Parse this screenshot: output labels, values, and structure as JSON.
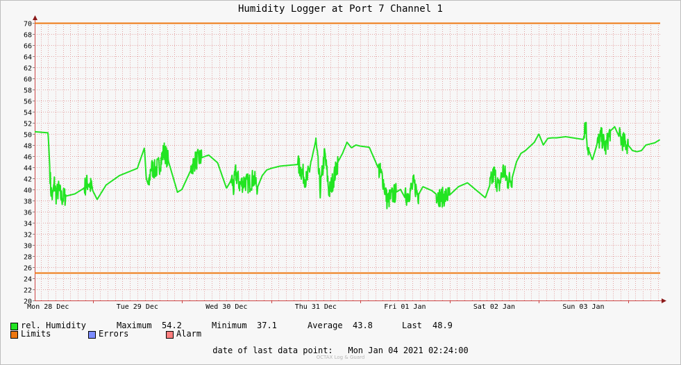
{
  "chart_data": {
    "type": "line",
    "title": "Humidity Logger at Port 7 Channel 1",
    "ylim": [
      20,
      70
    ],
    "yticks": [
      20,
      22,
      24,
      26,
      28,
      30,
      32,
      34,
      36,
      38,
      40,
      42,
      44,
      46,
      48,
      50,
      52,
      54,
      56,
      58,
      60,
      62,
      64,
      66,
      68,
      70
    ],
    "x_tick_labels": [
      "Mon 28 Dec",
      "Tue 29 Dec",
      "Wed 30 Dec",
      "Thu 31 Dec",
      "Fri 01 Jan",
      "Sat 02 Jan",
      "Sun 03 Jan"
    ],
    "xlim_days": [
      -0.15,
      6.86
    ],
    "grid": true,
    "limits": [
      {
        "name": "upper-limit",
        "value": 70
      },
      {
        "name": "lower-limit",
        "value": 25
      }
    ],
    "series": [
      {
        "name": "rel. Humidity",
        "x_days": [
          -0.15,
          0.0,
          0.03,
          0.05,
          0.07,
          0.09,
          0.12,
          0.15,
          0.2,
          0.3,
          0.4,
          0.45,
          0.5,
          0.55,
          0.6,
          0.65,
          0.8,
          1.0,
          1.08,
          1.1,
          1.13,
          1.15,
          1.2,
          1.25,
          1.3,
          1.35,
          1.45,
          1.5,
          1.6,
          1.62,
          1.65,
          1.7,
          1.75,
          1.8,
          1.9,
          2.0,
          2.06,
          2.08,
          2.1,
          2.15,
          2.2,
          2.25,
          2.3,
          2.35,
          2.4,
          2.45,
          2.5,
          2.6,
          2.8,
          2.9,
          3.0,
          3.05,
          3.1,
          3.15,
          3.2,
          3.25,
          3.3,
          3.35,
          3.4,
          3.45,
          3.5,
          3.6,
          3.75,
          3.8,
          3.9,
          3.95,
          4.0,
          4.05,
          4.1,
          4.15,
          4.2,
          4.3,
          4.4,
          4.5,
          4.6,
          4.7,
          4.9,
          5.0,
          5.05,
          5.1,
          5.15,
          5.2,
          5.25,
          5.3,
          5.35,
          5.45,
          5.5,
          5.55,
          5.6,
          5.65,
          5.7,
          5.8,
          6.0,
          6.02,
          6.05,
          6.1,
          6.15,
          6.2,
          6.25,
          6.3,
          6.35,
          6.4,
          6.45,
          6.5,
          6.55,
          6.6,
          6.65,
          6.7,
          6.8,
          6.85
        ],
        "y": [
          50.4,
          50.2,
          40.2,
          38.4,
          41.1,
          39.0,
          40.0,
          38.5,
          38.8,
          39.2,
          40.2,
          41.4,
          39.8,
          38.2,
          39.5,
          40.8,
          42.5,
          43.8,
          47.5,
          42.0,
          40.5,
          44.0,
          43.5,
          44.5,
          47.0,
          45.0,
          39.5,
          40.0,
          43.5,
          44.4,
          45.2,
          45.6,
          45.9,
          46.2,
          44.8,
          40.2,
          41.9,
          40.0,
          43.0,
          40.8,
          41.5,
          41.0,
          42.0,
          40.5,
          42.5,
          43.5,
          43.8,
          44.2,
          44.5,
          41.5,
          48.8,
          40.0,
          46.5,
          39.5,
          42.0,
          45.0,
          46.5,
          48.5,
          47.5,
          48.0,
          47.8,
          47.6,
          42.0,
          38.0,
          39.5,
          40.0,
          38.5,
          39.5,
          41.0,
          39.0,
          40.5,
          39.8,
          38.5,
          39.0,
          40.5,
          41.2,
          38.5,
          43.0,
          40.3,
          43.5,
          41.5,
          42.0,
          45.0,
          46.5,
          47.0,
          48.5,
          50.0,
          48.0,
          49.2,
          49.3,
          49.3,
          49.5,
          49.0,
          52.5,
          47.5,
          45.3,
          48.0,
          49.5,
          47.5,
          50.5,
          51.3,
          49.5,
          48.5,
          48.0,
          47.0,
          46.8,
          47.0,
          48.0,
          48.4,
          48.9
        ],
        "noise_spans": [
          [
            0.02,
            0.2
          ],
          [
            0.4,
            0.5
          ],
          [
            1.12,
            1.35
          ],
          [
            1.6,
            1.72
          ],
          [
            2.05,
            2.35
          ],
          [
            2.8,
            2.95
          ],
          [
            3.0,
            3.25
          ],
          [
            3.7,
            3.9
          ],
          [
            4.0,
            4.15
          ],
          [
            4.35,
            4.5
          ],
          [
            4.95,
            5.2
          ],
          [
            6.0,
            6.06
          ],
          [
            6.15,
            6.3
          ],
          [
            6.4,
            6.5
          ]
        ]
      }
    ]
  },
  "legend": {
    "series_label": "rel. Humidity",
    "max_label": "Maximum",
    "max_value": "54.2",
    "min_label": "Minimum",
    "min_value": "37.1",
    "avg_label": "Average",
    "avg_value": "43.8",
    "last_label": "Last",
    "last_value": "48.9",
    "limits_label": "Limits",
    "errors_label": "Errors",
    "alarm_label": "Alarm"
  },
  "colors": {
    "series": "#22e422",
    "limits": "#ee7711",
    "errors": "#7c8cff",
    "alarm": "#ff7f7f",
    "grid": "#e3a3a3"
  },
  "footer": {
    "label": "date of last data point:",
    "value": "Mon Jan 04 2021 02:24:00"
  },
  "watermark": "OCTAX Log & Guard"
}
